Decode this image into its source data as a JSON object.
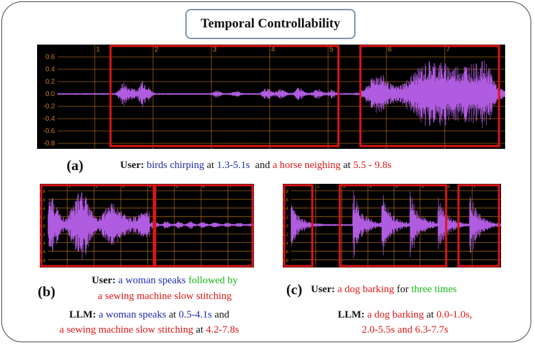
{
  "title": "Temporal Controllability",
  "panel_a": {
    "label": "(a)",
    "y_ticks": [
      "0.6",
      "0.4",
      "0.2",
      "0.0",
      "-0.2",
      "-0.4",
      "-0.6",
      "-0.8"
    ],
    "x_ticks": [
      "1",
      "2",
      "3",
      "4",
      "5",
      "6",
      "7"
    ],
    "caption": {
      "user_label": "User:",
      "event1": "birds chirping",
      "at1": " at ",
      "time1": "1.3-5.1s",
      "and": "  and ",
      "event2": "a horse neighing",
      "at2": " at ",
      "time2": "5.5 - 9.8s"
    }
  },
  "panel_b": {
    "label": "(b)",
    "y_ticks": [
      "0.8",
      "0.6",
      "0.4",
      "0.2",
      "0.0",
      "-0.2",
      "-0.4",
      "-0.6",
      "-0.8"
    ],
    "x_ticks": [
      "1",
      "2",
      "3",
      "4",
      "5",
      "6",
      "7"
    ],
    "user_label": "User:",
    "user_event1": "a woman speaks",
    "user_followed": " followed by",
    "user_event2": "a sewing machine slow stitching",
    "llm_label": "LLM:",
    "llm_event1": "a woman speaks",
    "llm_at1": " at ",
    "llm_time1": "0.5-4.1s",
    "llm_and": " and",
    "llm_event2": "a sewing machine slow stitching",
    "llm_at2": " at ",
    "llm_time2": "4.2-7.8s"
  },
  "panel_c": {
    "label": "(c)",
    "y_ticks": [
      "0.8",
      "0.6",
      "0.4",
      "0.2",
      "0.0",
      "-0.2",
      "-0.4",
      "-0.6",
      "-0.8"
    ],
    "x_ticks": [
      "1",
      "2",
      "3",
      "4",
      "5",
      "6",
      "7"
    ],
    "user_label": "User:",
    "user_event": "a dog barking",
    "user_for": " for ",
    "user_count": "three times",
    "llm_label": "LLM:",
    "llm_event": "a dog barking",
    "llm_at": " at ",
    "llm_time1": "0.0-1.0s,",
    "llm_time2": "2.0-5.5s",
    "llm_and": " and ",
    "llm_time3": "6.3-7.7s"
  },
  "colors": {
    "waveform": "#b05ce0",
    "highlight_box": "#e01515",
    "grid": "#c8801a",
    "background": "#000000"
  }
}
